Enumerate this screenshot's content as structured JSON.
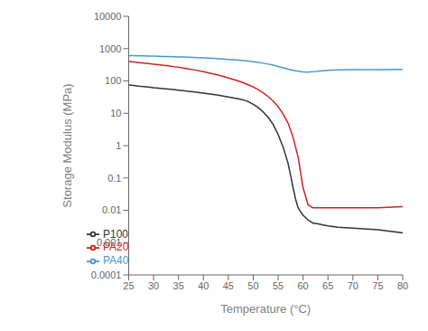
{
  "chart_data": {
    "type": "line",
    "xlabel": "Temperature (°C)",
    "ylabel": "Storage Modulus (MPa)",
    "xlim": [
      25,
      80
    ],
    "ylim": [
      0.0001,
      10000
    ],
    "xticks": [
      25,
      30,
      35,
      40,
      45,
      50,
      55,
      60,
      65,
      70,
      75,
      80
    ],
    "yticks": [
      0.0001,
      0.001,
      0.01,
      0.1,
      1,
      10,
      100,
      1000,
      10000
    ],
    "log": "y",
    "grid": false,
    "legend": "lower left",
    "series": [
      {
        "name": "P100",
        "color": "#333333",
        "x": [
          25,
          26,
          27,
          28,
          29,
          30,
          31,
          32,
          33,
          34,
          35,
          36,
          37,
          38,
          39,
          40,
          41,
          42,
          43,
          44,
          45,
          46,
          47,
          48,
          49,
          50,
          51,
          52,
          53,
          54,
          55,
          56,
          57,
          57.5,
          58,
          58.5,
          59,
          59.5,
          60,
          60.5,
          61,
          62,
          63,
          64,
          65,
          67,
          70,
          75,
          80
        ],
        "values": [
          75,
          72,
          69,
          67,
          65,
          62,
          60,
          58,
          56,
          54,
          52,
          50,
          48,
          46,
          44,
          42,
          40,
          38,
          36,
          34,
          32,
          30,
          28,
          26,
          23,
          19,
          15,
          11,
          7.5,
          4.5,
          2.2,
          0.9,
          0.28,
          0.12,
          0.05,
          0.022,
          0.012,
          0.009,
          0.007,
          0.006,
          0.005,
          0.004,
          0.0038,
          0.0035,
          0.0033,
          0.003,
          0.0028,
          0.0025,
          0.002
        ]
      },
      {
        "name": "PA20",
        "color": "#cc2222",
        "x": [
          25,
          26,
          27,
          28,
          29,
          30,
          31,
          32,
          33,
          34,
          35,
          36,
          37,
          38,
          39,
          40,
          41,
          42,
          43,
          44,
          45,
          46,
          47,
          48,
          49,
          50,
          51,
          52,
          53,
          54,
          55,
          56,
          57,
          58,
          59,
          60,
          61,
          61.5,
          62,
          62.5,
          63,
          64,
          65,
          67,
          70,
          75,
          80
        ],
        "values": [
          400,
          385,
          370,
          358,
          345,
          330,
          318,
          305,
          292,
          278,
          265,
          250,
          236,
          222,
          208,
          193,
          179,
          165,
          152,
          138,
          124,
          112,
          100,
          88,
          76,
          65,
          54,
          43,
          33,
          24,
          16,
          9.5,
          5.0,
          1.8,
          0.45,
          0.05,
          0.015,
          0.013,
          0.012,
          0.012,
          0.012,
          0.012,
          0.012,
          0.012,
          0.012,
          0.012,
          0.013
        ]
      },
      {
        "name": "PA40",
        "color": "#4499cc",
        "x": [
          25,
          26,
          27,
          28,
          29,
          30,
          31,
          32,
          33,
          34,
          35,
          36,
          37,
          38,
          39,
          40,
          41,
          42,
          43,
          44,
          45,
          46,
          47,
          48,
          49,
          50,
          51,
          52,
          53,
          54,
          55,
          56,
          57,
          58,
          59,
          60,
          61,
          62,
          63,
          64,
          65,
          67,
          70,
          75,
          80
        ],
        "values": [
          610,
          605,
          600,
          595,
          590,
          584,
          578,
          572,
          566,
          560,
          554,
          548,
          540,
          532,
          524,
          516,
          507,
          497,
          487,
          477,
          465,
          453,
          440,
          426,
          410,
          392,
          374,
          354,
          332,
          308,
          282,
          256,
          232,
          214,
          200,
          190,
          188,
          192,
          200,
          208,
          214,
          220,
          222,
          224,
          226
        ]
      }
    ]
  }
}
